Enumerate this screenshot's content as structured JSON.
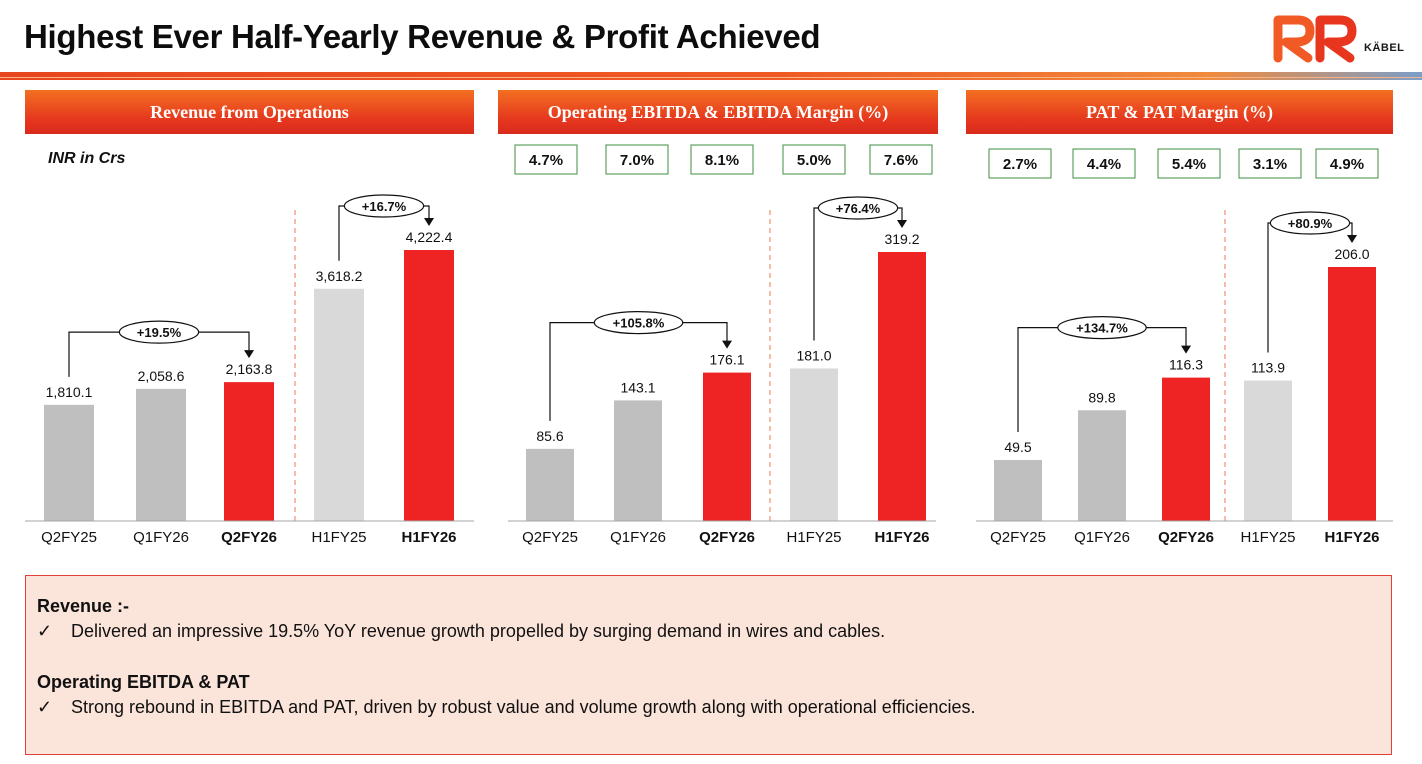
{
  "slide_title": "Highest Ever Half-Yearly Revenue & Profit Achieved",
  "logo": {
    "text": "RR",
    "subtext": "KÄBEL"
  },
  "panels": [
    {
      "header": "Revenue from Operations",
      "unit": "INR in Crs"
    },
    {
      "header": "Operating EBITDA & EBITDA Margin (%)"
    },
    {
      "header": "PAT & PAT Margin (%)"
    }
  ],
  "chart_data": [
    {
      "type": "bar",
      "title": "Revenue from Operations",
      "unit": "INR in Crs",
      "categories": [
        "Q2FY25",
        "Q1FY26",
        "Q2FY26",
        "H1FY25",
        "H1FY26"
      ],
      "values": [
        1810.1,
        2058.6,
        2163.8,
        3618.2,
        4222.4
      ],
      "value_labels": [
        "1,810.1",
        "2,058.6",
        "2,163.8",
        "3,618.2",
        "4,222.4"
      ],
      "highlighted": [
        "Q2FY26",
        "H1FY26"
      ],
      "margins": [],
      "growth_annotations": [
        {
          "from": "Q2FY25",
          "to": "Q2FY26",
          "label": "+19.5%"
        },
        {
          "from": "H1FY25",
          "to": "H1FY26",
          "label": "+16.7%"
        }
      ]
    },
    {
      "type": "bar",
      "title": "Operating EBITDA & EBITDA Margin (%)",
      "categories": [
        "Q2FY25",
        "Q1FY26",
        "Q2FY26",
        "H1FY25",
        "H1FY26"
      ],
      "values": [
        85.6,
        143.1,
        176.1,
        181.0,
        319.2
      ],
      "value_labels": [
        "85.6",
        "143.1",
        "176.1",
        "181.0",
        "319.2"
      ],
      "highlighted": [
        "Q2FY26",
        "H1FY26"
      ],
      "margins": [
        "4.7%",
        "7.0%",
        "8.1%",
        "5.0%",
        "7.6%"
      ],
      "growth_annotations": [
        {
          "from": "Q2FY25",
          "to": "Q2FY26",
          "label": "+105.8%"
        },
        {
          "from": "H1FY25",
          "to": "H1FY26",
          "label": "+76.4%"
        }
      ]
    },
    {
      "type": "bar",
      "title": "PAT & PAT Margin (%)",
      "categories": [
        "Q2FY25",
        "Q1FY26",
        "Q2FY26",
        "H1FY25",
        "H1FY26"
      ],
      "values": [
        49.5,
        89.8,
        116.3,
        113.9,
        206.0
      ],
      "value_labels": [
        "49.5",
        "89.8",
        "116.3",
        "113.9",
        "206.0"
      ],
      "highlighted": [
        "Q2FY26",
        "H1FY26"
      ],
      "margins": [
        "2.7%",
        "4.4%",
        "5.4%",
        "3.1%",
        "4.9%"
      ],
      "growth_annotations": [
        {
          "from": "Q2FY25",
          "to": "Q2FY26",
          "label": "+134.7%"
        },
        {
          "from": "H1FY25",
          "to": "H1FY26",
          "label": "+80.9%"
        }
      ]
    }
  ],
  "notes": {
    "revenue_heading": "Revenue :-",
    "revenue_point": "Delivered an impressive 19.5% YoY revenue growth propelled by surging demand in wires and cables.",
    "ebitda_heading": "Operating EBITDA & PAT",
    "ebitda_point": "Strong rebound in EBITDA and PAT, driven by robust value and volume growth along with operational efficiencies.",
    "check_mark": "✓"
  },
  "colors": {
    "accent": "#e8461e",
    "highlight_bar": "#ee2424",
    "quarter_bar": "#bfbfbf",
    "half_year_bar": "#d9d9d9",
    "margin_box_border": "#3f8f3f",
    "notes_background": "#fbe4da"
  }
}
